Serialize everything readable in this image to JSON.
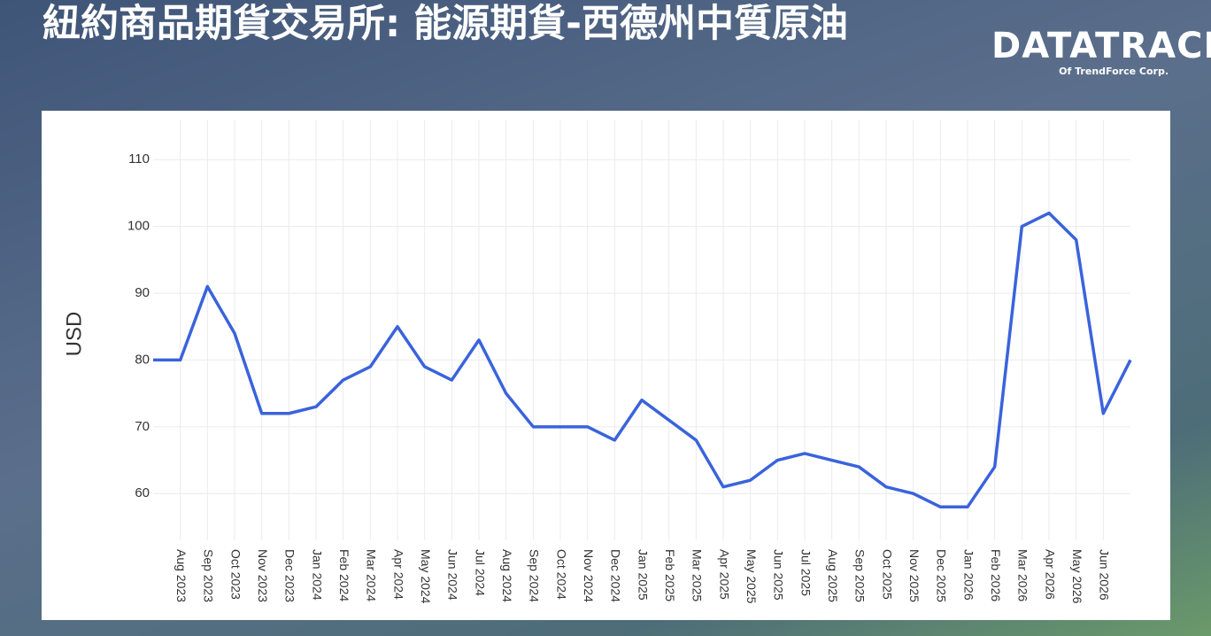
{
  "logo": {
    "name": "DATATRACK",
    "tagline": "Of TrendForce Corp."
  },
  "chart_data": {
    "type": "line",
    "title": "紐約商品期貨交易所: 能源期貨-西德州中質原油",
    "y_label": "USD",
    "categories": [
      null,
      "Aug 2023",
      "Sep 2023",
      "Oct 2023",
      "Nov 2023",
      "Dec 2023",
      "Jan 2024",
      "Feb 2024",
      "Mar 2024",
      "Apr 2024",
      "May 2024",
      "Jun 2024",
      "Jul 2024",
      "Aug 2024",
      "Sep 2024",
      "Oct 2024",
      "Nov 2024",
      "Dec 2024",
      "Jan 2025",
      "Feb 2025",
      "Mar 2025",
      "Apr 2025",
      "May 2025",
      "Jun 2025",
      "Jul 2025",
      "Aug 2025",
      "Sep 2025",
      "Oct 2025",
      "Nov 2025",
      "Dec 2025",
      "Jan 2026",
      "Feb 2026",
      "Mar 2026",
      "Apr 2026",
      "May 2026",
      "Jun 2026",
      null
    ],
    "values": [
      80,
      80,
      91,
      84,
      72,
      72,
      73,
      77,
      79,
      85,
      79,
      77,
      83,
      75,
      70,
      70,
      70,
      68,
      74,
      71,
      68,
      61,
      62,
      65,
      66,
      65,
      64,
      61,
      60,
      58,
      58,
      64,
      100,
      102,
      98,
      72,
      80
    ],
    "color": "#3a63dc",
    "ylim": [
      53,
      116
    ],
    "yticks": [
      60,
      70,
      80,
      90,
      100,
      110
    ],
    "grid": true
  }
}
